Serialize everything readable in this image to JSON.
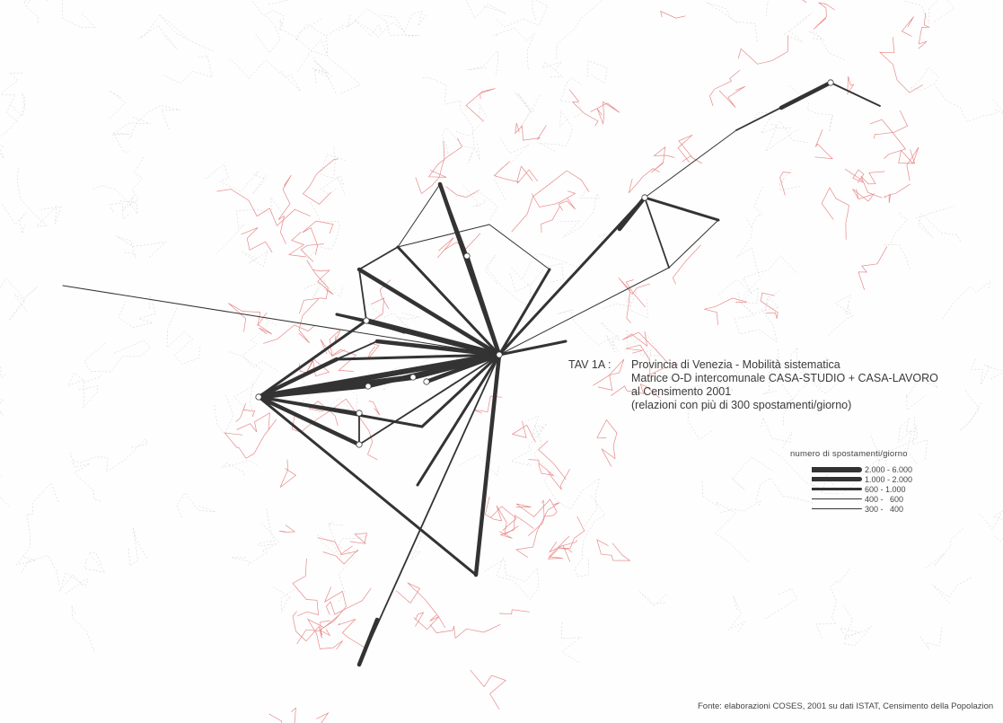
{
  "title": {
    "code": "TAV 1A :",
    "lines": [
      "Provincia di Venezia - Mobilità sistematica",
      "Matrice O-D intercomunale CASA-STUDIO + CASA-LAVORO",
      "al Censimento 2001",
      "(relazioni con più di 300 spostamenti/giorno)"
    ]
  },
  "legend": {
    "title": "numero di spostamenti/giorno",
    "classes": [
      {
        "label": "2.000 - 6.000",
        "min": 2000,
        "max": 6000
      },
      {
        "label": "1.000 - 2.000",
        "min": 1000,
        "max": 2000
      },
      {
        "label": "600 - 1.000",
        "min": 600,
        "max": 1000
      },
      {
        "label": "400 -   600",
        "min": 400,
        "max": 600
      },
      {
        "label": "300 -   400",
        "min": 300,
        "max": 400
      }
    ]
  },
  "source": "Fonte: elaborazioni COSES, 2001 su dati ISTAT, Censimento della Popolazion",
  "colors": {
    "flow": "#333333",
    "boundary_province": "#e88a8a",
    "boundary_other": "#cfcfcf",
    "node": "#ffffff"
  }
}
